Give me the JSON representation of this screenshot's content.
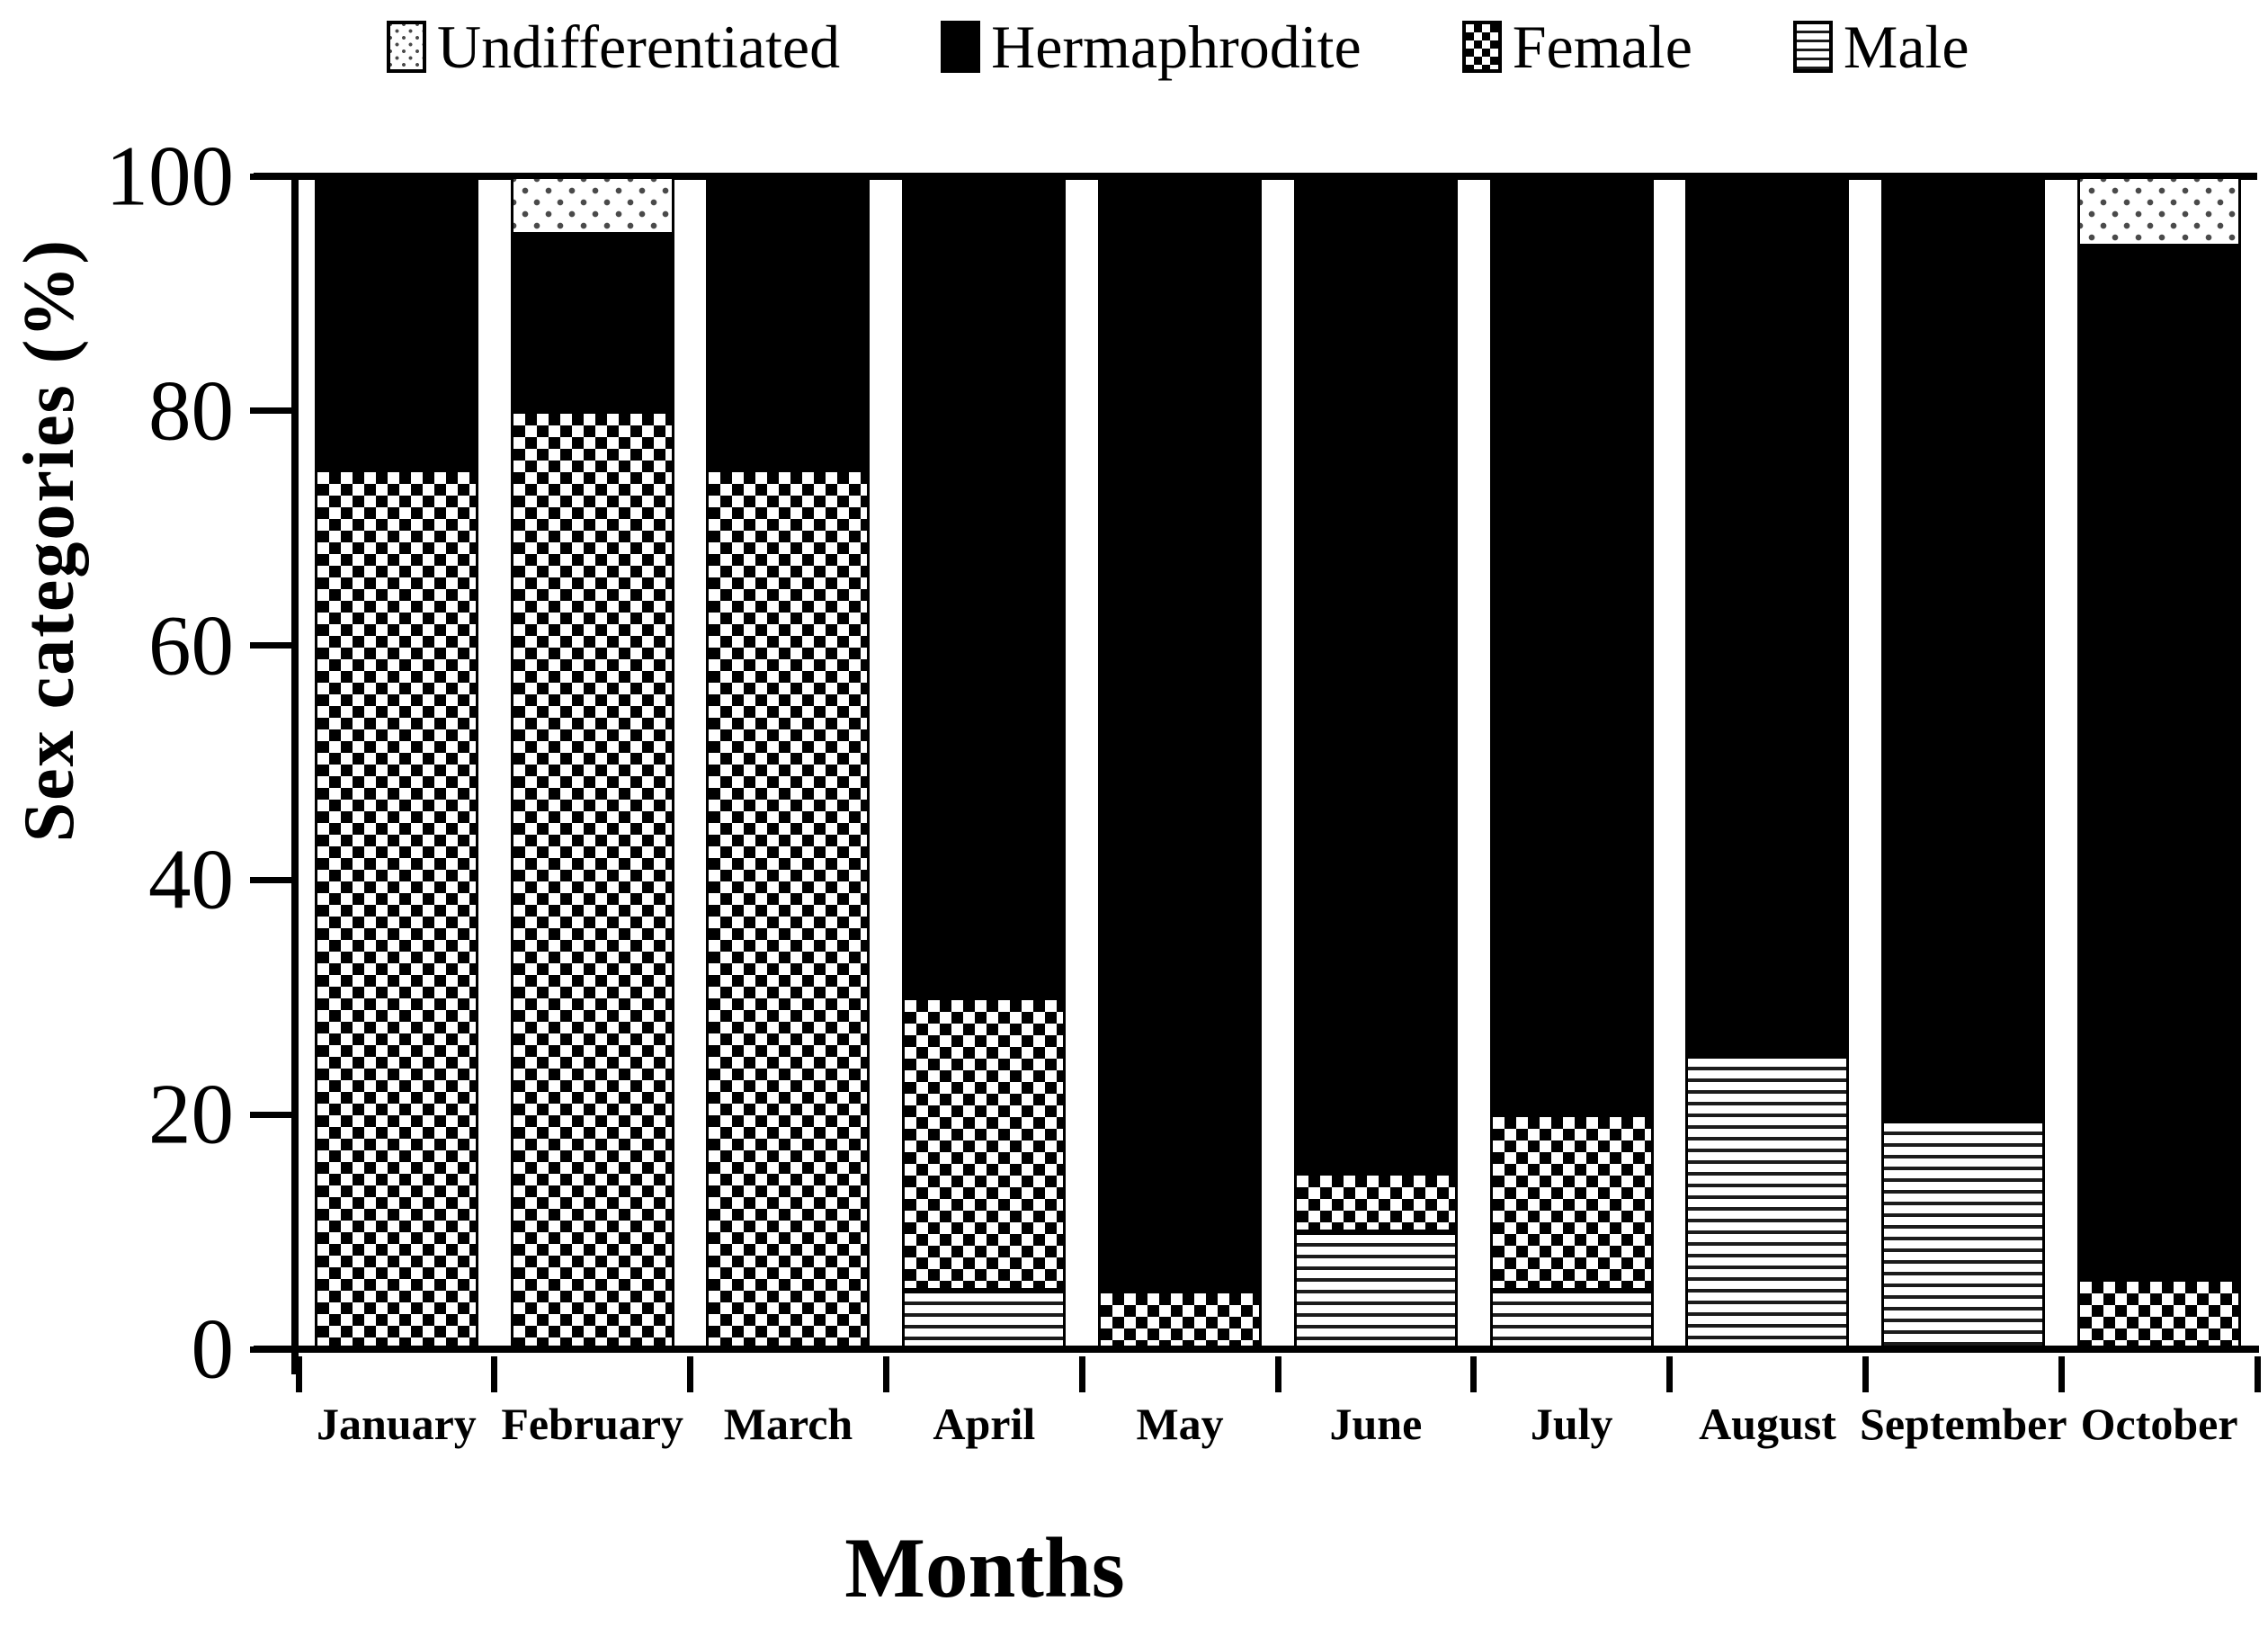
{
  "figure": {
    "background": "#ffffff",
    "foreground": "#000000"
  },
  "legend": {
    "position": "top",
    "items": [
      {
        "label": "Undifferentiated",
        "pattern": "dots"
      },
      {
        "label": "Hermaphrodite",
        "pattern": "solid-black"
      },
      {
        "label": "Female",
        "pattern": "checkerboard"
      },
      {
        "label": "Male",
        "pattern": "horizontal-stripes"
      }
    ]
  },
  "chart_data": {
    "type": "bar",
    "stacked": true,
    "title": "",
    "xlabel": "Months",
    "ylabel": "Sex categories (%)",
    "ylim": [
      0,
      100
    ],
    "yticks": [
      0,
      20,
      40,
      60,
      80,
      100
    ],
    "grid": false,
    "legend_position": "top",
    "categories": [
      "January",
      "February",
      "March",
      "April",
      "May",
      "June",
      "July",
      "August",
      "September",
      "October"
    ],
    "stack_order_bottom_to_top": [
      "Male",
      "Female",
      "Hermaphrodite",
      "Undifferentiated"
    ],
    "series": [
      {
        "name": "Male",
        "pattern": "horizontal-stripes",
        "values": [
          0,
          0,
          0,
          5,
          0,
          10,
          5,
          25,
          19.5,
          0
        ]
      },
      {
        "name": "Female",
        "pattern": "checkerboard",
        "values": [
          75,
          80,
          75,
          25,
          5,
          5,
          15,
          0,
          0,
          6
        ]
      },
      {
        "name": "Hermaphrodite",
        "pattern": "solid-black",
        "values": [
          25,
          15,
          25,
          70,
          95,
          85,
          80,
          75,
          80.5,
          88
        ]
      },
      {
        "name": "Undifferentiated",
        "pattern": "dots",
        "values": [
          0,
          5,
          0,
          0,
          0,
          0,
          0,
          0,
          0,
          6
        ]
      }
    ],
    "colors": {
      "foreground": "#000000",
      "background": "#ffffff"
    }
  }
}
